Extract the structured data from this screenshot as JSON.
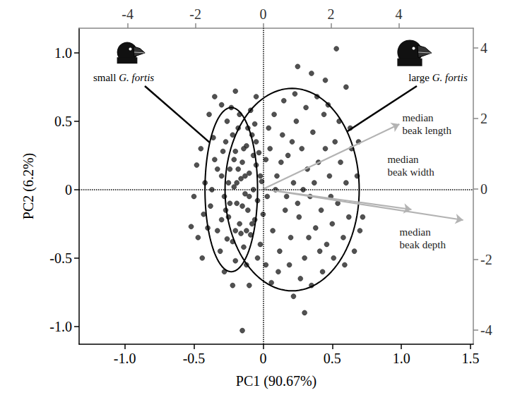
{
  "chart_data": {
    "type": "scatter",
    "x_label": "PC1 (90.67%)",
    "y_label": "PC2 (6.2%)",
    "xlim": [
      -1.33,
      1.52
    ],
    "xticks": [
      {
        "value": -1,
        "label": "-1.0"
      },
      -0.5,
      0,
      0.5,
      {
        "value": 1,
        "label": "1.0"
      },
      1.5
    ],
    "ylim": [
      -1.13,
      1.18
    ],
    "yticks": [
      {
        "value": -1,
        "label": "-1.0"
      },
      -0.5,
      0,
      0.5,
      {
        "value": 1,
        "label": "1.0"
      }
    ],
    "x2lim": [
      -5.43,
      6.2
    ],
    "x2ticks": [
      -4,
      -2,
      0,
      2,
      4
    ],
    "y2lim": [
      -4.4,
      4.56
    ],
    "y2ticks": [
      -4,
      -2,
      0,
      2,
      4
    ],
    "grid": false,
    "color": "#333333",
    "marker": "circle",
    "reference_lines": [
      {
        "axis": "x",
        "value": 0
      },
      {
        "axis": "y",
        "value": 0
      }
    ],
    "points": [
      [
        -0.42,
        0.05
      ],
      [
        -0.38,
        -0.12
      ],
      [
        -0.35,
        0.22
      ],
      [
        -0.33,
        -0.3
      ],
      [
        -0.3,
        0.1
      ],
      [
        -0.28,
        -0.05
      ],
      [
        -0.27,
        0.35
      ],
      [
        -0.25,
        -0.2
      ],
      [
        -0.24,
        0.15
      ],
      [
        -0.22,
        -0.38
      ],
      [
        -0.21,
        0.02
      ],
      [
        -0.2,
        0.28
      ],
      [
        -0.19,
        -0.1
      ],
      [
        -0.18,
        0.45
      ],
      [
        -0.17,
        -0.25
      ],
      [
        -0.16,
        0.08
      ],
      [
        -0.15,
        0.2
      ],
      [
        -0.14,
        -0.42
      ],
      [
        -0.13,
        -0.03
      ],
      [
        -0.12,
        0.32
      ],
      [
        -0.11,
        -0.15
      ],
      [
        -0.1,
        0.12
      ],
      [
        -0.09,
        -0.33
      ],
      [
        -0.08,
        0.4
      ],
      [
        -0.07,
        0.0
      ],
      [
        -0.06,
        -0.22
      ],
      [
        -0.05,
        0.18
      ],
      [
        -0.04,
        -0.08
      ],
      [
        -0.03,
        0.27
      ],
      [
        -0.02,
        -0.4
      ],
      [
        -0.01,
        0.06
      ],
      [
        0.0,
        -0.18
      ],
      [
        0.02,
        0.22
      ],
      [
        0.03,
        -0.05
      ],
      [
        -0.36,
        0.38
      ],
      [
        -0.4,
        -0.28
      ],
      [
        -0.31,
        -0.45
      ],
      [
        -0.26,
        0.5
      ],
      [
        -0.23,
        0.6
      ],
      [
        -0.2,
        -0.52
      ],
      [
        -0.17,
        0.55
      ],
      [
        -0.12,
        -0.55
      ],
      [
        -0.09,
        0.58
      ],
      [
        -0.06,
        0.48
      ],
      [
        -0.04,
        -0.5
      ],
      [
        -0.29,
        0.28
      ],
      [
        -0.26,
        -0.36
      ],
      [
        -0.22,
        0.4
      ],
      [
        -0.19,
        0.05
      ],
      [
        -0.16,
        -0.32
      ],
      [
        -0.14,
        0.3
      ],
      [
        -0.11,
        0.45
      ],
      [
        -0.08,
        -0.25
      ],
      [
        -0.24,
        -0.1
      ],
      [
        -0.2,
        -0.3
      ],
      [
        -0.15,
        -0.12
      ],
      [
        -0.13,
        0.1
      ],
      [
        -0.1,
        -0.05
      ],
      [
        -0.18,
        0.15
      ],
      [
        -0.21,
        0.22
      ],
      [
        -0.27,
        -0.15
      ],
      [
        -0.3,
        -0.22
      ],
      [
        -0.33,
        0.15
      ],
      [
        -0.37,
        0.0
      ],
      [
        -0.25,
        0.05
      ],
      [
        -0.12,
        -0.3
      ],
      [
        -0.07,
        0.25
      ],
      [
        -0.05,
        0.35
      ],
      [
        -0.02,
        0.1
      ],
      [
        -0.52,
        -0.27
      ],
      [
        -0.48,
        0.18
      ],
      [
        -0.5,
        -0.05
      ],
      [
        -0.45,
        0.3
      ],
      [
        -0.47,
        -0.35
      ],
      [
        -0.44,
        -0.5
      ],
      [
        -0.39,
        0.55
      ],
      [
        -0.35,
        0.68
      ],
      [
        -0.28,
        -0.6
      ],
      [
        -0.22,
        -0.7
      ],
      [
        -0.1,
        -0.7
      ],
      [
        -0.15,
        -1.03
      ],
      [
        -0.3,
        0.62
      ],
      [
        -0.05,
        0.68
      ],
      [
        -0.2,
        0.72
      ],
      [
        -0.43,
        -0.18
      ],
      [
        0.05,
        0.3
      ],
      [
        0.07,
        -0.3
      ],
      [
        0.1,
        0.1
      ],
      [
        0.12,
        -0.45
      ],
      [
        0.14,
        0.4
      ],
      [
        0.16,
        -0.15
      ],
      [
        0.18,
        0.25
      ],
      [
        0.2,
        -0.35
      ],
      [
        0.22,
        0.05
      ],
      [
        0.24,
        0.5
      ],
      [
        0.26,
        -0.2
      ],
      [
        0.28,
        0.3
      ],
      [
        0.3,
        -0.5
      ],
      [
        0.32,
        0.15
      ],
      [
        0.34,
        -0.05
      ],
      [
        0.36,
        0.42
      ],
      [
        0.38,
        -0.28
      ],
      [
        0.4,
        0.2
      ],
      [
        0.42,
        -0.15
      ],
      [
        0.44,
        0.55
      ],
      [
        0.46,
        -0.4
      ],
      [
        0.48,
        0.1
      ],
      [
        0.5,
        -0.25
      ],
      [
        0.52,
        0.35
      ],
      [
        0.54,
        -0.1
      ],
      [
        0.56,
        0.2
      ],
      [
        0.58,
        -0.35
      ],
      [
        0.6,
        0.05
      ],
      [
        0.62,
        -0.2
      ],
      [
        0.64,
        0.3
      ],
      [
        0.66,
        -0.45
      ],
      [
        0.68,
        0.1
      ],
      [
        0.7,
        -0.3
      ],
      [
        0.08,
        0.55
      ],
      [
        0.11,
        -0.6
      ],
      [
        0.15,
        0.65
      ],
      [
        0.19,
        -0.55
      ],
      [
        0.23,
        0.7
      ],
      [
        0.27,
        -0.65
      ],
      [
        0.31,
        0.6
      ],
      [
        0.35,
        -0.7
      ],
      [
        0.39,
        0.68
      ],
      [
        0.43,
        -0.6
      ],
      [
        0.47,
        0.62
      ],
      [
        0.51,
        -0.5
      ],
      [
        0.55,
        0.5
      ],
      [
        0.59,
        -0.55
      ],
      [
        0.63,
        0.45
      ],
      [
        0.09,
        0.0
      ],
      [
        0.13,
        0.2
      ],
      [
        0.17,
        -0.05
      ],
      [
        0.21,
        0.35
      ],
      [
        0.25,
        -0.1
      ],
      [
        0.29,
        0.0
      ],
      [
        0.33,
        -0.35
      ],
      [
        0.37,
        0.05
      ],
      [
        0.41,
        -0.45
      ],
      [
        0.45,
        0.3
      ],
      [
        0.49,
        -0.05
      ],
      [
        0.53,
        1.03
      ],
      [
        0.3,
        -0.9
      ],
      [
        0.6,
        0.75
      ],
      [
        0.45,
        0.8
      ],
      [
        0.22,
        -0.78
      ],
      [
        0.06,
        -0.68
      ],
      [
        0.72,
        -0.2
      ],
      [
        0.69,
        0.35
      ],
      [
        0.04,
        0.45
      ],
      [
        0.02,
        -0.55
      ],
      [
        0.35,
        0.85
      ],
      [
        0.25,
        0.9
      ]
    ],
    "ellipses": [
      {
        "name": "small G. fortis",
        "center": [
          -0.23,
          0
        ],
        "radii": [
          0.19,
          0.6
        ],
        "color": "#000000"
      },
      {
        "name": "large G. fortis",
        "center": [
          0.21,
          0
        ],
        "radii": [
          0.485,
          0.74
        ],
        "color": "#000000"
      }
    ],
    "loadings": [
      {
        "name": "median\nbeak length",
        "from": [
          0,
          0
        ],
        "to": [
          4.02,
          1.84
        ]
      },
      {
        "name": "median\nbeak width",
        "from": [
          0,
          0
        ],
        "to": [
          4.375,
          -0.58
        ]
      },
      {
        "name": "median\nbeak depth",
        "from": [
          0,
          0
        ],
        "to": [
          5.9,
          -0.88
        ]
      }
    ],
    "loadings_color": "#b3b3b3"
  }
}
